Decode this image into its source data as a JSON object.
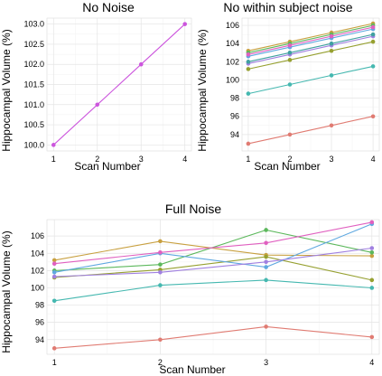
{
  "chart_data": [
    {
      "type": "line",
      "title": "No Noise",
      "xlabel": "Scan Number",
      "ylabel": "Hippocampal Volume (%)",
      "x": [
        1,
        2,
        3,
        4
      ],
      "xlim": [
        0.85,
        4.15
      ],
      "ylim": [
        99.85,
        103.15
      ],
      "yticks": [
        100.0,
        100.5,
        101.0,
        101.5,
        102.0,
        102.5,
        103.0
      ],
      "ytick_labels": [
        "100.0",
        "100.5",
        "101.0",
        "101.5",
        "102.0",
        "102.5",
        "103.0"
      ],
      "grid": true,
      "series": [
        {
          "color": "#cc55dd",
          "values": [
            100.0,
            101.0,
            102.0,
            103.0
          ]
        }
      ]
    },
    {
      "type": "line",
      "title": "No within subject noise",
      "xlabel": "Scan Number",
      "ylabel": "Hippocampal Volume (%)",
      "x": [
        1,
        2,
        3,
        4
      ],
      "xlim": [
        0.85,
        4.15
      ],
      "ylim": [
        92.2,
        106.8
      ],
      "yticks": [
        94,
        96,
        98,
        100,
        102,
        104,
        106
      ],
      "ytick_labels": [
        "94",
        "96",
        "98",
        "100",
        "102",
        "104",
        "106"
      ],
      "grid": true,
      "series": [
        {
          "color": "#e07b72",
          "values": [
            93.0,
            94.0,
            95.0,
            96.0
          ]
        },
        {
          "color": "#c8a040",
          "values": [
            103.2,
            104.2,
            105.2,
            106.2
          ]
        },
        {
          "color": "#96a030",
          "values": [
            101.2,
            102.2,
            103.2,
            104.2
          ]
        },
        {
          "color": "#5cb85c",
          "values": [
            103.0,
            104.0,
            105.0,
            106.0
          ]
        },
        {
          "color": "#45b8b0",
          "values": [
            98.5,
            99.5,
            100.5,
            101.5
          ]
        },
        {
          "color": "#5fa8e0",
          "values": [
            102.6,
            103.6,
            104.6,
            105.6
          ]
        },
        {
          "color": "#a080e0",
          "values": [
            101.8,
            102.8,
            103.8,
            104.8
          ]
        },
        {
          "color": "#e060c0",
          "values": [
            102.8,
            103.8,
            104.8,
            105.8
          ]
        },
        {
          "color": "#40a0a0",
          "values": [
            102.0,
            103.0,
            104.0,
            105.0
          ]
        }
      ]
    },
    {
      "type": "line",
      "title": "Full Noise",
      "xlabel": "Scan Number",
      "ylabel": "Hippocampal Volume (%)",
      "x": [
        1,
        2,
        3,
        4
      ],
      "xlim": [
        0.93,
        4.07
      ],
      "ylim": [
        92.3,
        107.9
      ],
      "yticks": [
        94,
        96,
        98,
        100,
        102,
        104,
        106
      ],
      "ytick_labels": [
        "94",
        "96",
        "98",
        "100",
        "102",
        "104",
        "106"
      ],
      "grid": true,
      "series": [
        {
          "color": "#e07b72",
          "values": [
            93.0,
            94.0,
            95.5,
            94.3
          ]
        },
        {
          "color": "#c8a040",
          "values": [
            103.2,
            105.4,
            103.8,
            103.7
          ]
        },
        {
          "color": "#96a030",
          "values": [
            101.2,
            102.1,
            103.6,
            100.9
          ]
        },
        {
          "color": "#5cb85c",
          "values": [
            102.0,
            102.7,
            106.7,
            104.1
          ]
        },
        {
          "color": "#45b8b0",
          "values": [
            98.5,
            100.3,
            100.9,
            100.0
          ]
        },
        {
          "color": "#5fa8e0",
          "values": [
            101.8,
            104.0,
            102.4,
            107.4
          ]
        },
        {
          "color": "#a080e0",
          "values": [
            101.3,
            101.8,
            103.0,
            104.6
          ]
        },
        {
          "color": "#e060c0",
          "values": [
            102.8,
            104.1,
            105.2,
            107.6
          ]
        }
      ]
    }
  ]
}
